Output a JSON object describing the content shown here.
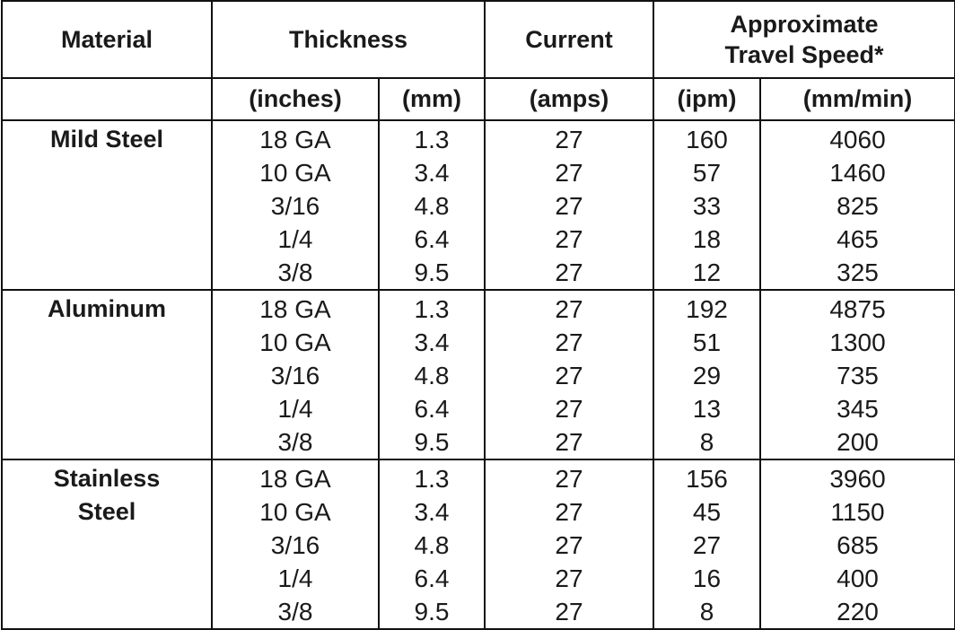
{
  "header": {
    "material": "Material",
    "thickness": "Thickness",
    "current": "Current",
    "travel_speed": [
      "Approximate",
      "Travel Speed*"
    ]
  },
  "units": [
    "(inches)",
    "(mm)",
    "(amps)",
    "(ipm)",
    "(mm/min)"
  ],
  "groups": [
    {
      "material": [
        "Mild Steel"
      ],
      "rows": [
        [
          "18 GA",
          "1.3",
          "27",
          "160",
          "4060"
        ],
        [
          "10 GA",
          "3.4",
          "27",
          "57",
          "1460"
        ],
        [
          "3/16",
          "4.8",
          "27",
          "33",
          "825"
        ],
        [
          "1/4",
          "6.4",
          "27",
          "18",
          "465"
        ],
        [
          "3/8",
          "9.5",
          "27",
          "12",
          "325"
        ]
      ]
    },
    {
      "material": [
        "Aluminum"
      ],
      "rows": [
        [
          "18 GA",
          "1.3",
          "27",
          "192",
          "4875"
        ],
        [
          "10 GA",
          "3.4",
          "27",
          "51",
          "1300"
        ],
        [
          "3/16",
          "4.8",
          "27",
          "29",
          "735"
        ],
        [
          "1/4",
          "6.4",
          "27",
          "13",
          "345"
        ],
        [
          "3/8",
          "9.5",
          "27",
          "8",
          "200"
        ]
      ]
    },
    {
      "material": [
        "Stainless",
        "Steel"
      ],
      "rows": [
        [
          "18 GA",
          "1.3",
          "27",
          "156",
          "3960"
        ],
        [
          "10 GA",
          "3.4",
          "27",
          "45",
          "1150"
        ],
        [
          "3/16",
          "4.8",
          "27",
          "27",
          "685"
        ],
        [
          "1/4",
          "6.4",
          "27",
          "16",
          "400"
        ],
        [
          "3/8",
          "9.5",
          "27",
          "8",
          "220"
        ]
      ]
    }
  ]
}
